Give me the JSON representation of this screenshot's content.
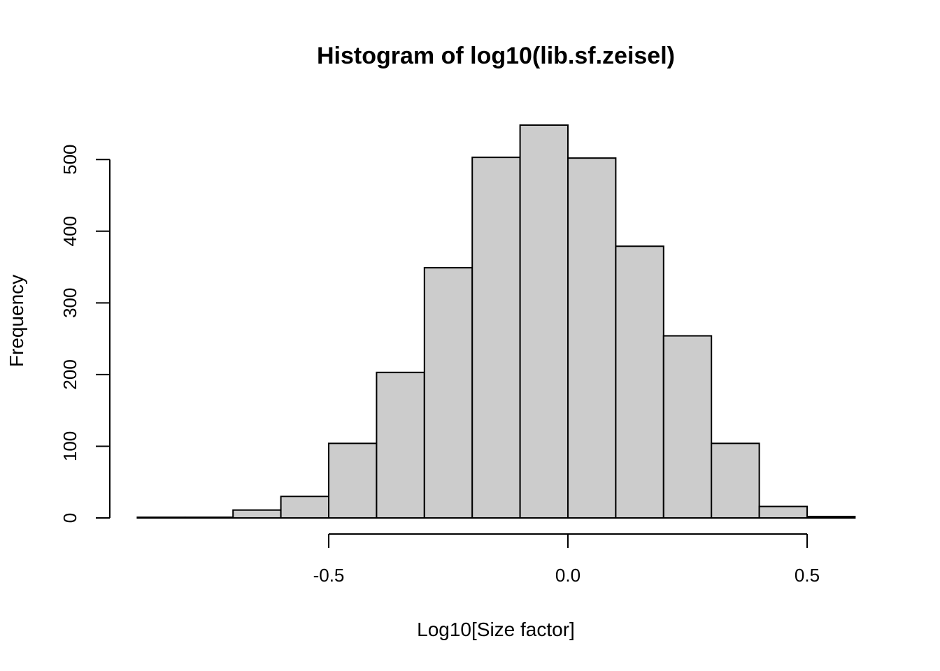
{
  "chart_data": {
    "type": "bar",
    "title": "Histogram of log10(lib.sf.zeisel)",
    "xlabel": "Log10[Size factor]",
    "ylabel": "Frequency",
    "bins": [
      {
        "x0": -0.9,
        "x1": -0.8,
        "count": 1
      },
      {
        "x0": -0.8,
        "x1": -0.7,
        "count": 1
      },
      {
        "x0": -0.7,
        "x1": -0.6,
        "count": 11
      },
      {
        "x0": -0.6,
        "x1": -0.5,
        "count": 30
      },
      {
        "x0": -0.5,
        "x1": -0.4,
        "count": 104
      },
      {
        "x0": -0.4,
        "x1": -0.3,
        "count": 203
      },
      {
        "x0": -0.3,
        "x1": -0.2,
        "count": 349
      },
      {
        "x0": -0.2,
        "x1": -0.1,
        "count": 503
      },
      {
        "x0": -0.1,
        "x1": 0.0,
        "count": 548
      },
      {
        "x0": 0.0,
        "x1": 0.1,
        "count": 502
      },
      {
        "x0": 0.1,
        "x1": 0.2,
        "count": 379
      },
      {
        "x0": 0.2,
        "x1": 0.3,
        "count": 254
      },
      {
        "x0": 0.3,
        "x1": 0.4,
        "count": 104
      },
      {
        "x0": 0.4,
        "x1": 0.5,
        "count": 16
      },
      {
        "x0": 0.5,
        "x1": 0.6,
        "count": 2
      }
    ],
    "xlim": [
      -0.9,
      0.6
    ],
    "ylim": [
      0,
      548
    ],
    "x_ticks": [
      -0.5,
      0.0,
      0.5
    ],
    "x_tick_labels": [
      "-0.5",
      "0.0",
      "0.5"
    ],
    "y_ticks": [
      0,
      100,
      200,
      300,
      400,
      500
    ],
    "y_tick_labels": [
      "0",
      "100",
      "200",
      "300",
      "400",
      "500"
    ],
    "grid": false,
    "bar_fill": "#cccccc",
    "bar_stroke": "#000000"
  }
}
